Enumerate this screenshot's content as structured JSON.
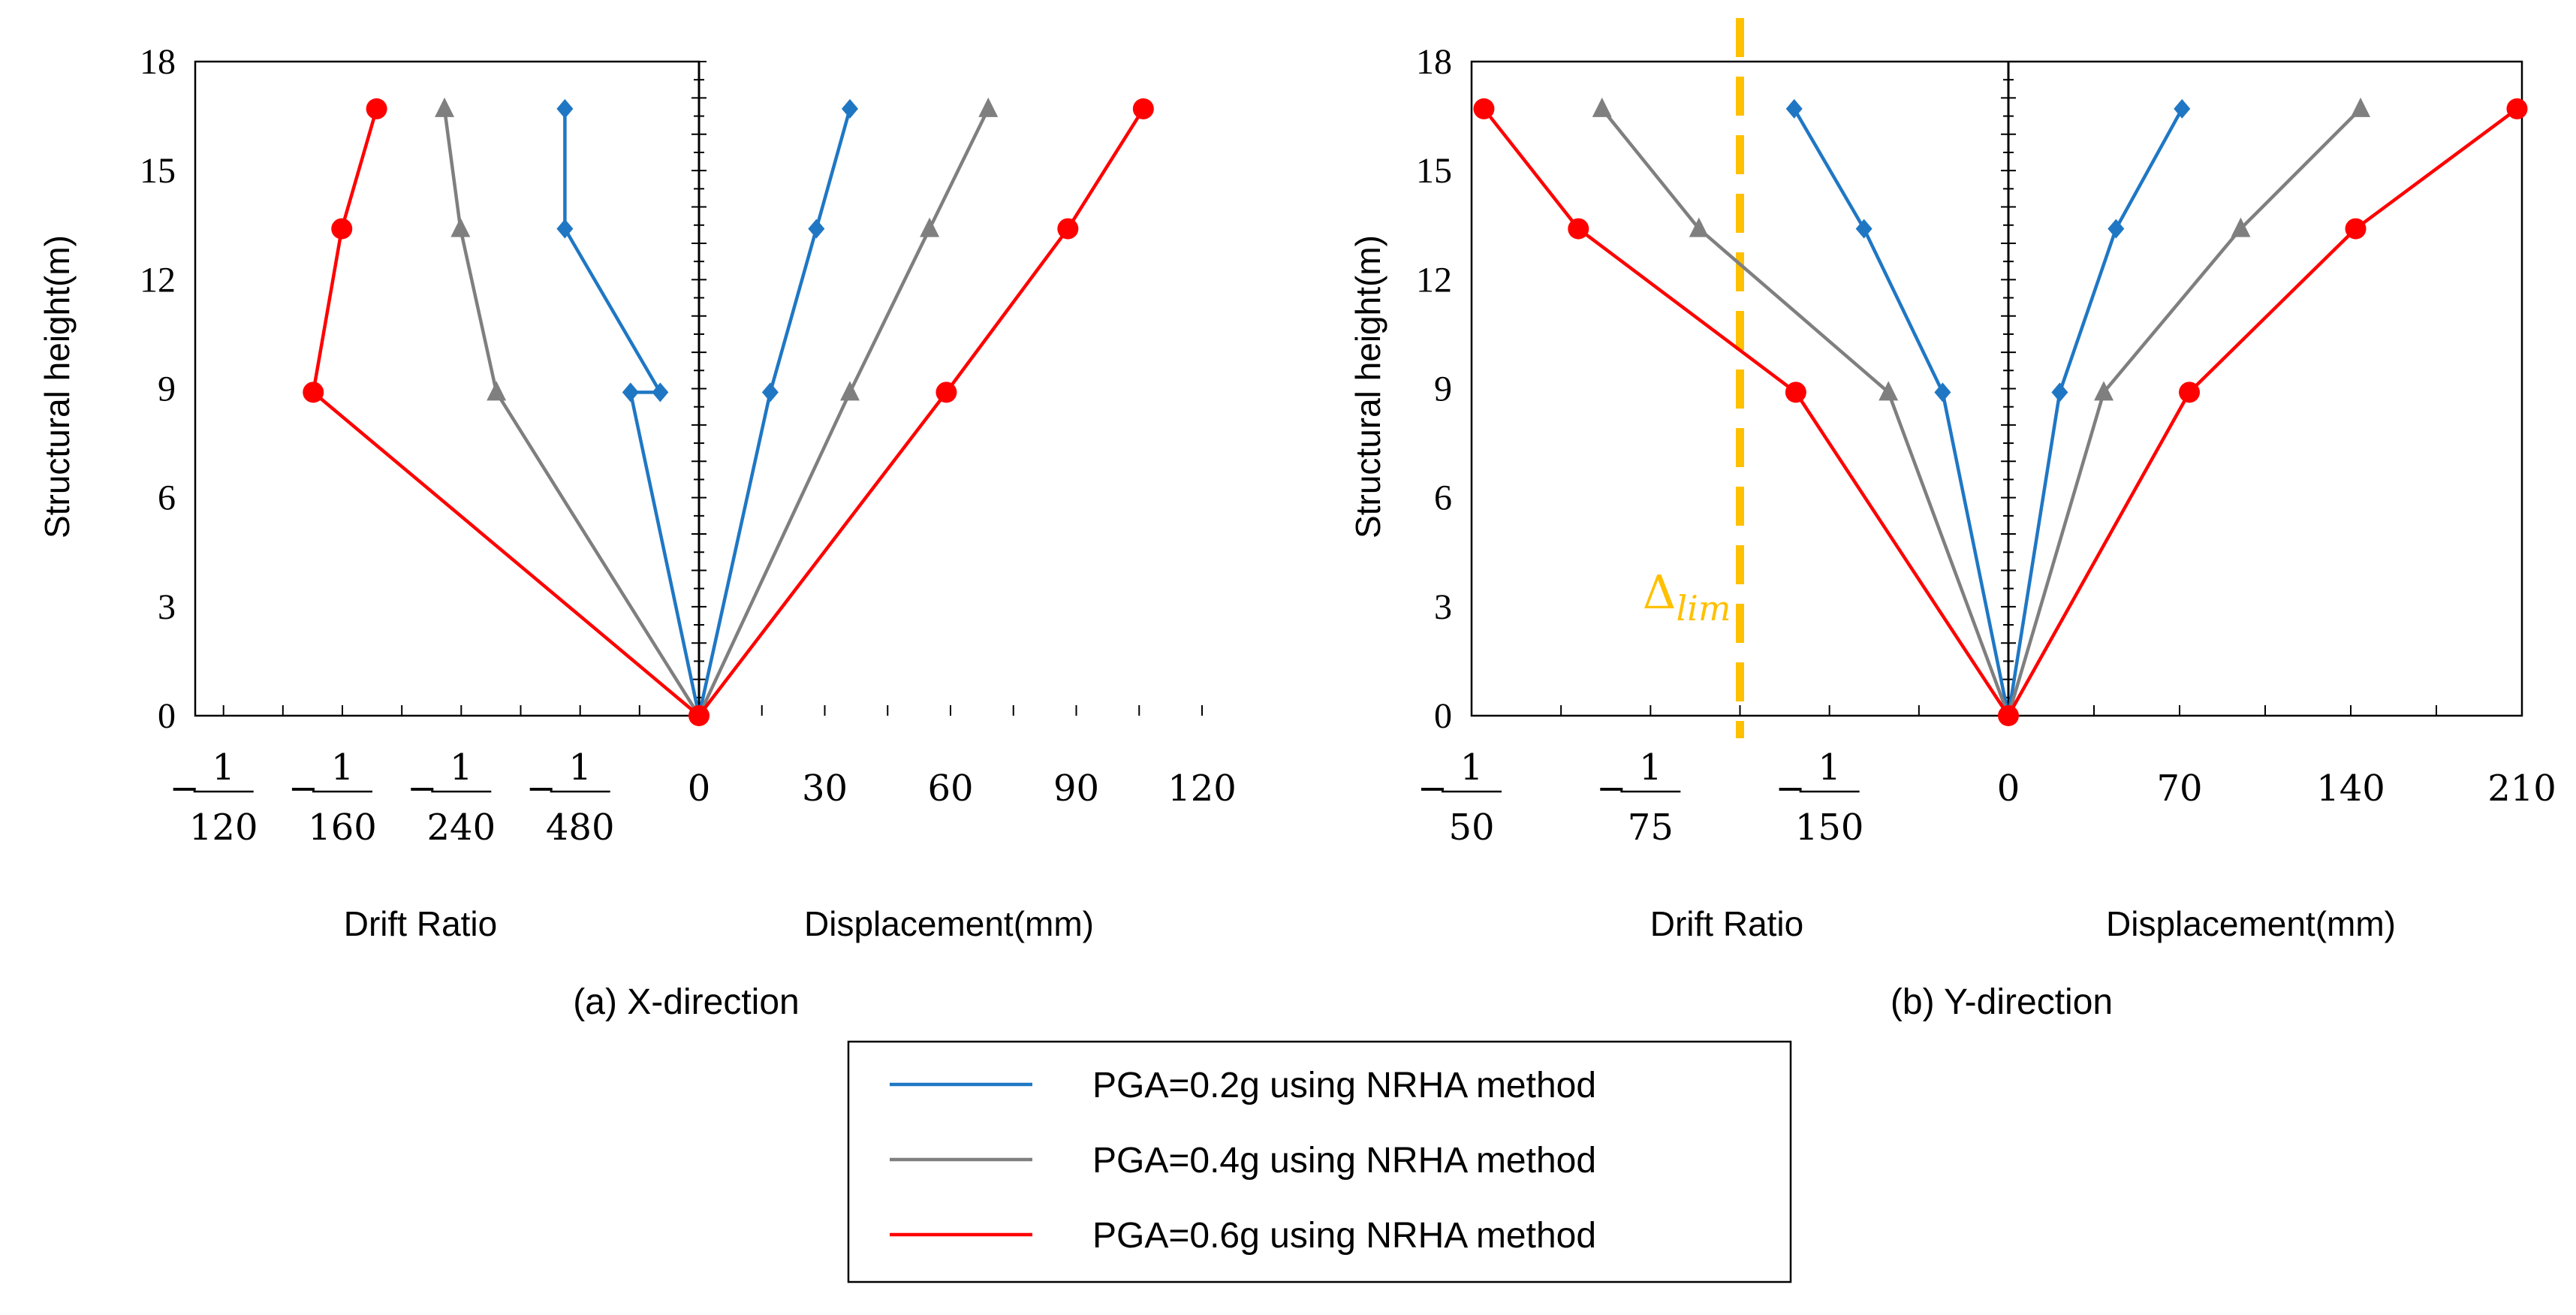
{
  "chart_data": [
    {
      "type": "line",
      "caption": "(a) X-direction",
      "ylabel": "Structural height(m)",
      "ylim": [
        0,
        18
      ],
      "yticks": [
        "0",
        "3",
        "6",
        "9",
        "12",
        "15",
        "18"
      ],
      "left_xlabel": "Drift Ratio",
      "right_xlabel": "Displacement(mm)",
      "drift_ticks": [
        {
          "num": "1",
          "den": "120",
          "value": -0.008333
        },
        {
          "num": "1",
          "den": "160",
          "value": -0.00625
        },
        {
          "num": "1",
          "den": "240",
          "value": -0.004167
        },
        {
          "num": "1",
          "den": "480",
          "value": -0.002083
        }
      ],
      "drift_minor_ticks": [
        -0.007292,
        -0.005208,
        -0.003125,
        -0.001042
      ],
      "disp_ticks": [
        "0",
        "30",
        "60",
        "90",
        "120"
      ],
      "disp_max": 120,
      "series": [
        {
          "name": "PGA=0.2g using NRHA  method",
          "drift": [
            -0.0012,
            -0.00068,
            -0.00235,
            -0.00235
          ],
          "height": [
            8.9,
            8.9,
            13.4,
            16.7
          ],
          "disp_height": [
            0,
            8.9,
            13.4,
            16.7
          ],
          "disp": [
            0,
            17,
            28,
            36
          ]
        },
        {
          "name": "PGA=0.4g using NRHA  method",
          "drift": [
            -0.00355,
            -0.00418,
            -0.00446
          ],
          "height": [
            8.9,
            13.4,
            16.7
          ],
          "disp": [
            0,
            36,
            55,
            69
          ]
        },
        {
          "name": "PGA=0.6g using NRHA  method",
          "drift": [
            -0.00676,
            -0.00626,
            -0.00565
          ],
          "height": [
            8.9,
            13.4,
            16.7
          ],
          "disp": [
            0,
            59,
            88,
            106
          ]
        }
      ]
    },
    {
      "type": "line",
      "caption": "(b) Y-direction",
      "ylabel": "Structural height(m)",
      "ylim": [
        0,
        18
      ],
      "yticks": [
        "0",
        "3",
        "6",
        "9",
        "12",
        "15",
        "18"
      ],
      "left_xlabel": "Drift Ratio",
      "right_xlabel": "Displacement(mm)",
      "drift_ticks": [
        {
          "num": "1",
          "den": "50",
          "value": -0.02
        },
        {
          "num": "1",
          "den": "75",
          "value": -0.013333
        },
        {
          "num": "1",
          "den": "150",
          "value": -0.006667
        }
      ],
      "drift_minor_ticks": [
        -0.016667,
        -0.01,
        -0.003333
      ],
      "disp_ticks": [
        "0",
        "70",
        "140",
        "210"
      ],
      "disp_max": 210,
      "limit_label": "Δ",
      "limit_subscript": "lim",
      "limit_drift": -0.01,
      "series": [
        {
          "name": "PGA=0.2g using NRHA  method",
          "drift": [
            -0.00245,
            -0.00538,
            -0.00798
          ],
          "height": [
            8.9,
            13.4,
            16.7
          ],
          "disp": [
            0,
            21,
            44,
            71
          ]
        },
        {
          "name": "PGA=0.4g using NRHA  method",
          "drift": [
            -0.00447,
            -0.01153,
            -0.01514
          ],
          "height": [
            8.9,
            13.4,
            16.7
          ],
          "disp": [
            0,
            39,
            95,
            144
          ]
        },
        {
          "name": "PGA=0.6g using NRHA  method",
          "drift": [
            -0.00792,
            -0.01602,
            -0.01954
          ],
          "height": [
            8.9,
            13.4,
            16.7
          ],
          "disp": [
            0,
            74,
            142,
            208
          ]
        }
      ]
    }
  ],
  "legend": [
    {
      "label": "PGA=0.2g using NRHA  method",
      "color": "#1F77C4",
      "marker": "diamond"
    },
    {
      "label": "PGA=0.4g using NRHA  method",
      "color": "#7F7F7F",
      "marker": "triangle"
    },
    {
      "label": "PGA=0.6g using NRHA  method",
      "color": "#FF0000",
      "marker": "circle"
    }
  ]
}
